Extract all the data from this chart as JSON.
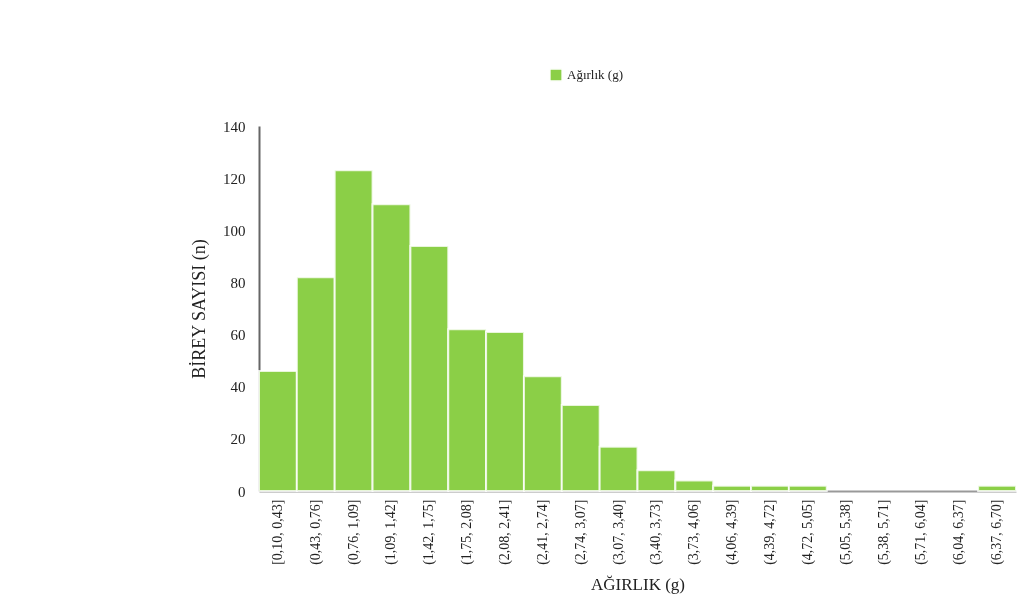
{
  "chart_data": {
    "type": "bar",
    "xlabel": "AĞIRLIK (g)",
    "ylabel": "BİREY SAYISI (n)",
    "categories": [
      "[0,10, 0,43]",
      "(0,43, 0,76]",
      "(0,76, 1,09]",
      "(1,09, 1,42]",
      "(1,42, 1,75]",
      "(1,75, 2,08]",
      "(2,08, 2,41]",
      "(2,41, 2,74]",
      "(2,74, 3,07]",
      "(3,07, 3,40]",
      "(3,40, 3,73]",
      "(3,73, 4,06]",
      "(4,06, 4,39]",
      "(4,39, 4,72]",
      "(4,72, 5,05]",
      "(5,05, 5,38]",
      "(5,38, 5,71]",
      "(5,71, 6,04]",
      "(6,04, 6,37]",
      "(6,37, 6,70]"
    ],
    "series": [
      {
        "name": "Ağırlık (g)",
        "color": "#8bcf47",
        "values": [
          46,
          82,
          123,
          110,
          94,
          62,
          61,
          44,
          33,
          17,
          8,
          4,
          2,
          2,
          2,
          0,
          0,
          0,
          0,
          2
        ]
      }
    ],
    "ylim": [
      0,
      140
    ],
    "yticks": [
      0,
      20,
      40,
      60,
      80,
      100,
      120,
      140
    ],
    "grid": false,
    "legend": "top"
  }
}
